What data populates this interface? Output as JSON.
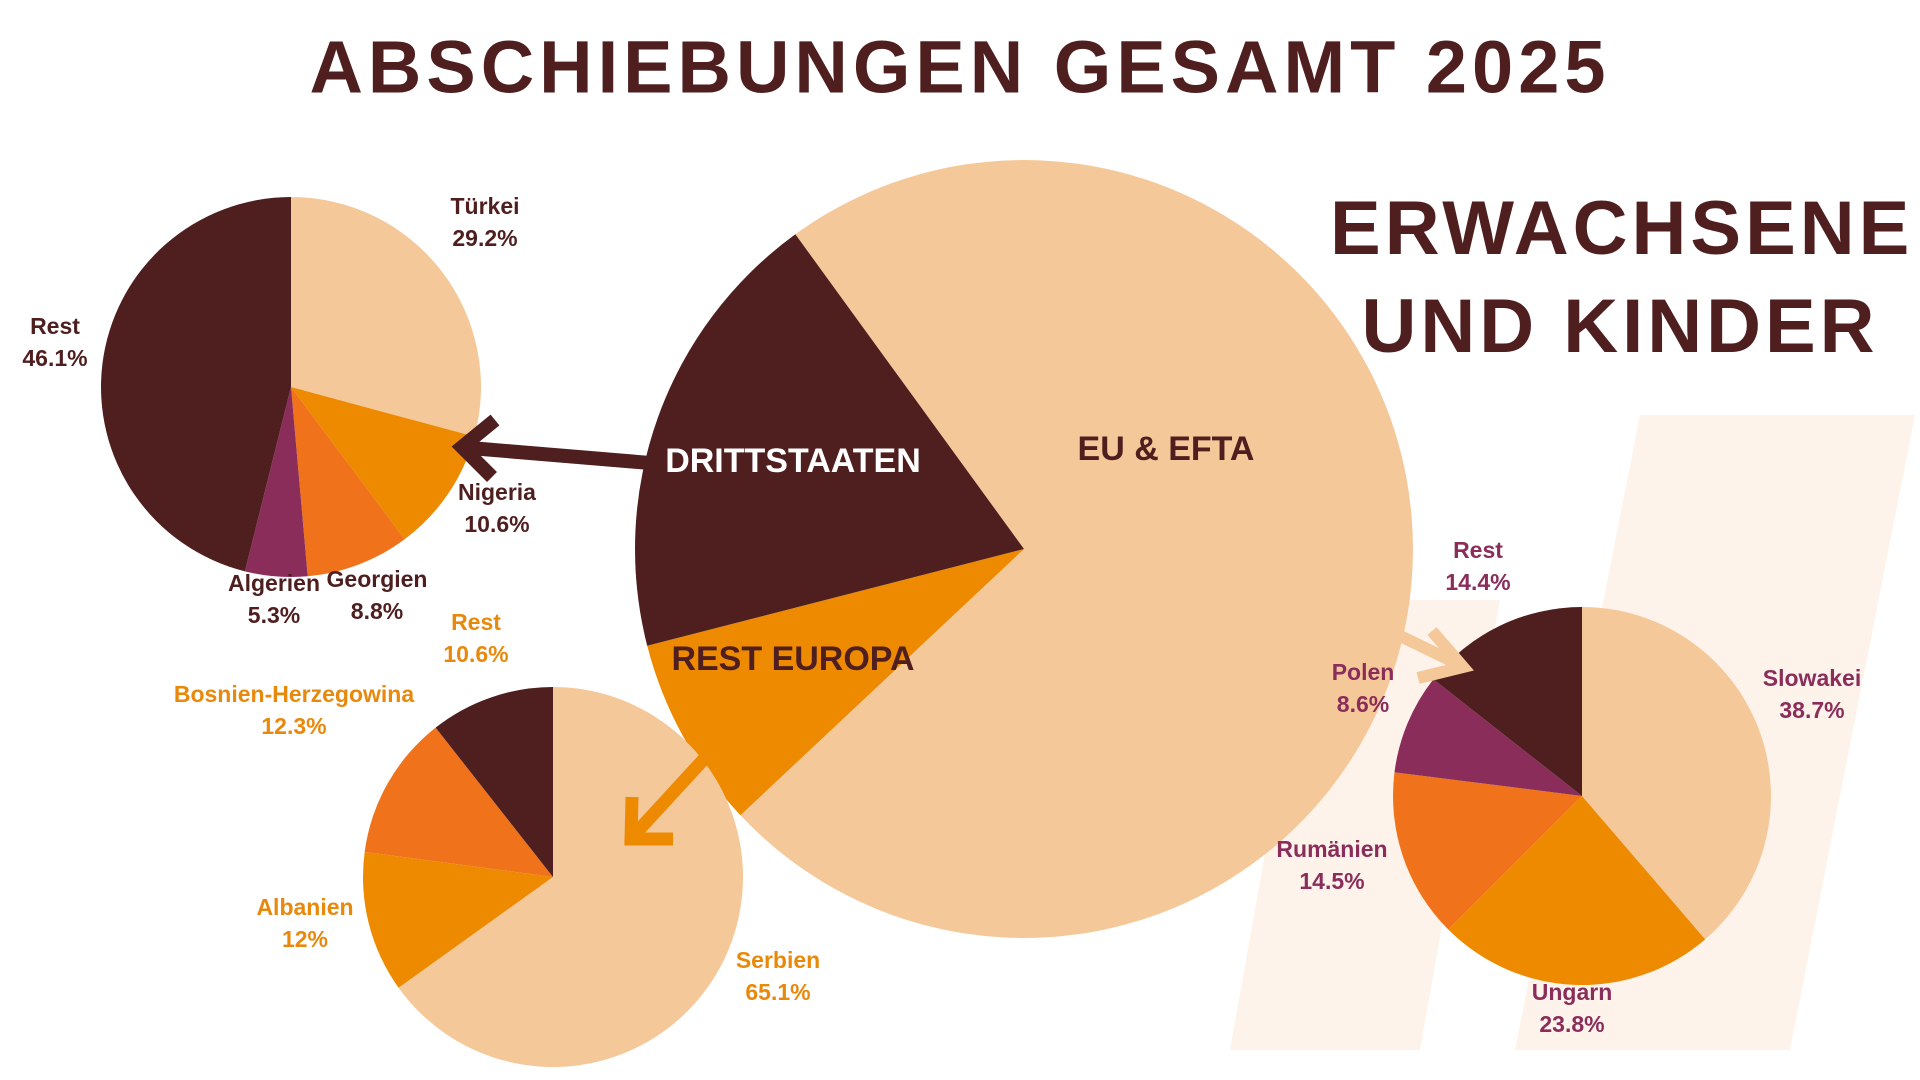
{
  "chart_data": [
    {
      "type": "pie",
      "title": "ABSCHIEBUNGEN GESAMT 2025",
      "subtitle": "ERWACHSENE UND KINDER",
      "categories": [
        "EU & EFTA",
        "REST EUROPA",
        "DRITTSTAATEN"
      ],
      "values": [
        73,
        8,
        19
      ],
      "colors": [
        "#f5c89a",
        "#ee8a00",
        "#4f1f1f"
      ],
      "label_colors": [
        "#4f1f1f",
        "#4f1f1f",
        "#ffffff"
      ]
    },
    {
      "type": "pie",
      "categories": [
        "Türkei",
        "Nigeria",
        "Georgien",
        "Algerien",
        "Rest"
      ],
      "values": [
        29.2,
        10.6,
        8.8,
        5.3,
        46.1
      ],
      "value_labels": [
        "29.2%",
        "10.6%",
        "8.8%",
        "5.3%",
        "46.1%"
      ],
      "colors": [
        "#f5c89a",
        "#ee8a00",
        "#f0731b",
        "#8b2d5a",
        "#4f1f1f"
      ],
      "label_color": "#4f1f1f"
    },
    {
      "type": "pie",
      "categories": [
        "Serbien",
        "Albanien",
        "Bosnien-Herzegowina",
        "Rest"
      ],
      "values": [
        65.1,
        12,
        12.3,
        10.6
      ],
      "value_labels": [
        "65.1%",
        "12%",
        "12.3%",
        "10.6%"
      ],
      "colors": [
        "#f5c89a",
        "#ee8a00",
        "#f0731b",
        "#4f1f1f"
      ],
      "label_color": "#e8890c"
    },
    {
      "type": "pie",
      "categories": [
        "Slowakei",
        "Ungarn",
        "Rumänien",
        "Polen",
        "Rest"
      ],
      "values": [
        38.7,
        23.8,
        14.5,
        8.6,
        14.4
      ],
      "value_labels": [
        "38.7%",
        "23.8%",
        "14.5%",
        "8.6%",
        "14.4%"
      ],
      "colors": [
        "#f5c89a",
        "#ee8a00",
        "#f0731b",
        "#8b2d5a",
        "#4f1f1f"
      ],
      "label_color": "#8a2d5a"
    }
  ]
}
